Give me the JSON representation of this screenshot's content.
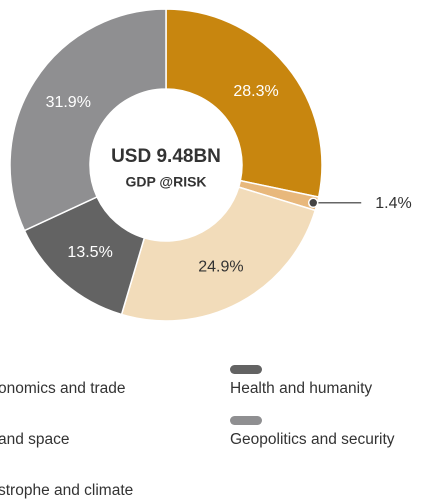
{
  "chart_data": {
    "type": "donut",
    "center_title": "USD 9.48BN",
    "center_subtitle": "GDP @RISK",
    "values": [
      28.3,
      1.4,
      24.9,
      13.5,
      31.9
    ],
    "value_labels": [
      "28.3%",
      "1.4%",
      "24.9%",
      "13.5%",
      "31.9%"
    ],
    "colors": [
      "#c8860f",
      "#e8b87c",
      "#f2dcba",
      "#636363",
      "#8f8f91"
    ],
    "callout": [
      1
    ],
    "legend": [
      {
        "name": "onomics and trade"
      },
      {
        "name": "Health and humanity",
        "color": "#636363"
      },
      {
        "name": "and space"
      },
      {
        "name": "Geopolitics and security",
        "color": "#8f8f91"
      },
      {
        "name": "strophe and climate"
      }
    ]
  }
}
